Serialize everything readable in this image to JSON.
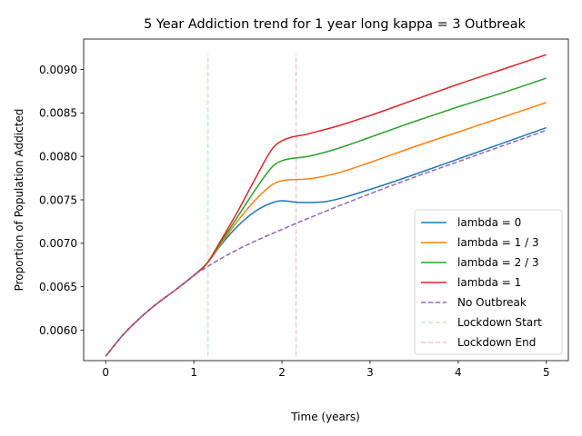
{
  "chart_data": {
    "type": "line",
    "title": "5 Year Addiction trend for 1 year long kappa = 3 Outbreak",
    "xlabel": "Time (years)",
    "ylabel": "Proportion of Population Addicted",
    "xlim": [
      -0.25,
      5.25
    ],
    "ylim": [
      0.00565,
      0.00935
    ],
    "xticks": [
      0,
      1,
      2,
      3,
      4,
      5
    ],
    "xtick_labels": [
      "0",
      "1",
      "2",
      "3",
      "4",
      "5"
    ],
    "yticks": [
      0.006,
      0.0065,
      0.007,
      0.0075,
      0.008,
      0.0085,
      0.009
    ],
    "ytick_labels": [
      "0.0060",
      "0.0065",
      "0.0070",
      "0.0075",
      "0.0080",
      "0.0085",
      "0.0090"
    ],
    "grid": false,
    "legend_position": "bottom-right",
    "series": [
      {
        "name": "lambda = 0",
        "color": "#1f77b4",
        "dash": "solid",
        "x": [
          0,
          0.2,
          0.4,
          0.6,
          0.8,
          1.0,
          1.15,
          1.3,
          1.5,
          1.7,
          1.9,
          2.0,
          2.2,
          2.5,
          3.0,
          3.5,
          4.0,
          4.5,
          5.0
        ],
        "y": [
          0.0057,
          0.00595,
          0.00615,
          0.00632,
          0.00647,
          0.00663,
          0.00677,
          0.00697,
          0.0072,
          0.00737,
          0.00747,
          0.00749,
          0.00747,
          0.00748,
          0.00762,
          0.00779,
          0.00797,
          0.00815,
          0.00833
        ]
      },
      {
        "name": "lambda = 1 / 3",
        "color": "#ff7f0e",
        "dash": "solid",
        "x": [
          0,
          0.2,
          0.4,
          0.6,
          0.8,
          1.0,
          1.15,
          1.3,
          1.5,
          1.7,
          1.9,
          2.0,
          2.3,
          2.6,
          3.0,
          3.5,
          4.0,
          4.5,
          5.0
        ],
        "y": [
          0.0057,
          0.00595,
          0.00615,
          0.00632,
          0.00647,
          0.00663,
          0.00677,
          0.00698,
          0.00726,
          0.0075,
          0.00768,
          0.00772,
          0.00774,
          0.0078,
          0.00793,
          0.00811,
          0.00828,
          0.00845,
          0.00862
        ]
      },
      {
        "name": "lambda = 2 / 3",
        "color": "#2ca02c",
        "dash": "solid",
        "x": [
          0,
          0.2,
          0.4,
          0.6,
          0.8,
          1.0,
          1.15,
          1.3,
          1.5,
          1.7,
          1.9,
          2.0,
          2.3,
          2.6,
          3.0,
          3.5,
          4.0,
          4.5,
          5.0
        ],
        "y": [
          0.0057,
          0.00595,
          0.00615,
          0.00632,
          0.00647,
          0.00663,
          0.00677,
          0.007,
          0.00731,
          0.00762,
          0.00789,
          0.00795,
          0.008,
          0.00808,
          0.00822,
          0.0084,
          0.00857,
          0.00873,
          0.0089
        ]
      },
      {
        "name": "lambda = 1",
        "color": "#d62728",
        "dash": "solid",
        "x": [
          0,
          0.2,
          0.4,
          0.6,
          0.8,
          1.0,
          1.15,
          1.3,
          1.5,
          1.7,
          1.9,
          2.0,
          2.3,
          2.6,
          3.0,
          3.5,
          4.0,
          4.5,
          5.0
        ],
        "y": [
          0.0057,
          0.00595,
          0.00615,
          0.00632,
          0.00647,
          0.00663,
          0.00677,
          0.00702,
          0.00737,
          0.00775,
          0.0081,
          0.00818,
          0.00826,
          0.00834,
          0.00847,
          0.00865,
          0.00883,
          0.009,
          0.00917
        ]
      },
      {
        "name": "No Outbreak",
        "color": "#9467bd",
        "dash": "dashed",
        "x": [
          0,
          0.2,
          0.4,
          0.6,
          0.8,
          1.0,
          1.2,
          1.5,
          2.0,
          2.5,
          3.0,
          3.5,
          4.0,
          4.5,
          5.0
        ],
        "y": [
          0.0057,
          0.00595,
          0.00615,
          0.00632,
          0.00647,
          0.00663,
          0.00676,
          0.00693,
          0.00716,
          0.00737,
          0.00757,
          0.00776,
          0.00794,
          0.00812,
          0.0083
        ]
      },
      {
        "name": "Lockdown Start",
        "color": "#2ca02c",
        "dash": "dashed",
        "opacity": 0.25,
        "x": [
          1.16,
          1.16
        ],
        "y": [
          0.0057,
          0.00918
        ]
      },
      {
        "name": "Lockdown End",
        "color": "#d62728",
        "dash": "dashed",
        "opacity": 0.25,
        "x": [
          2.16,
          2.16
        ],
        "y": [
          0.0057,
          0.00918
        ]
      }
    ]
  }
}
